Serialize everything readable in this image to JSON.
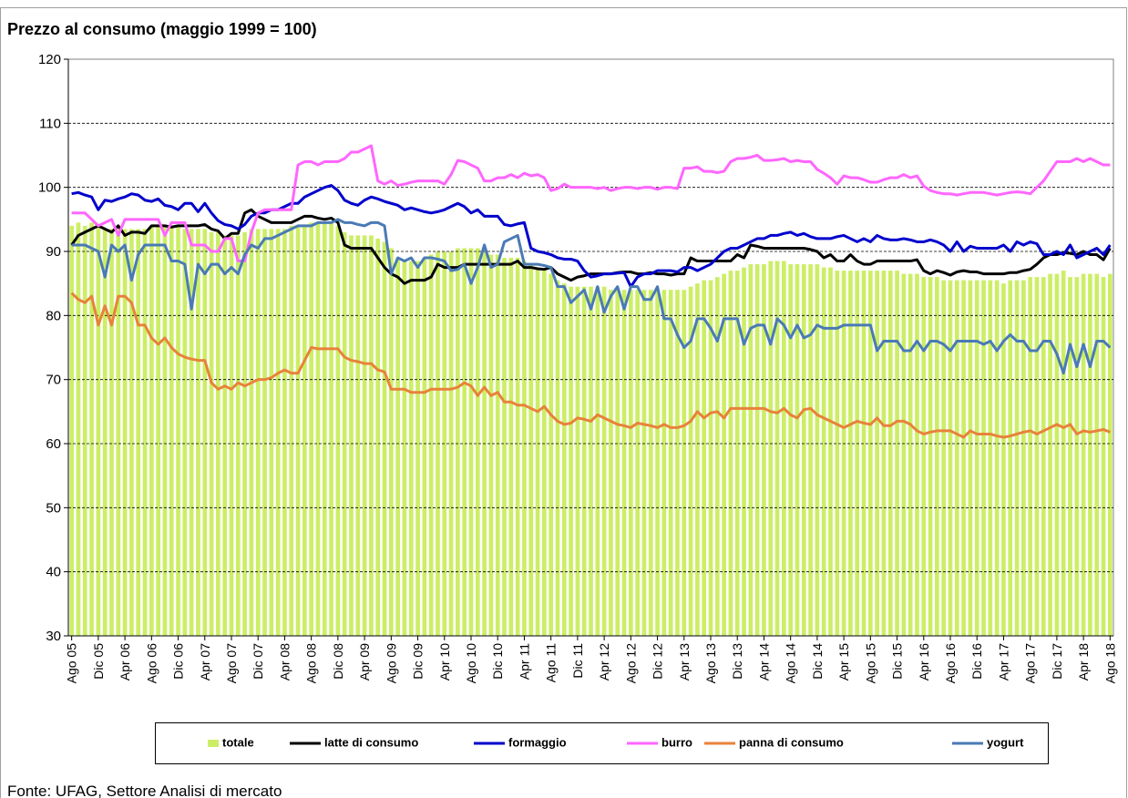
{
  "chart_data": {
    "type": "line",
    "title": "Prezzo al consumo (maggio 1999 = 100)",
    "source": "Fonte: UFAG, Settore Analisi di mercato",
    "ylim": [
      30,
      120
    ],
    "yticks": [
      30,
      40,
      50,
      60,
      70,
      80,
      90,
      100,
      110,
      120
    ],
    "grid": true,
    "legend": "bottom",
    "categories": [
      "Ago 05",
      null,
      null,
      null,
      "Dic 05",
      null,
      null,
      null,
      "Apr 06",
      null,
      null,
      null,
      "Ago 06",
      null,
      null,
      null,
      "Dic 06",
      null,
      null,
      null,
      "Apr 07",
      null,
      null,
      null,
      "Ago 07",
      null,
      null,
      null,
      "Dic 07",
      null,
      null,
      null,
      "Apr 08",
      null,
      null,
      null,
      "Ago 08",
      null,
      null,
      null,
      "Dic 08",
      null,
      null,
      null,
      "Apr 09",
      null,
      null,
      null,
      "Ago 09",
      null,
      null,
      null,
      "Dic 09",
      null,
      null,
      null,
      "Apr 10",
      null,
      null,
      null,
      "Ago 10",
      null,
      null,
      null,
      "Dic 10",
      null,
      null,
      null,
      "Apr 11",
      null,
      null,
      null,
      "Ago 11",
      null,
      null,
      null,
      "Dic 11",
      null,
      null,
      null,
      "Apr 12",
      null,
      null,
      null,
      "Ago 12",
      null,
      null,
      null,
      "Dic 12",
      null,
      null,
      null,
      "Apr 13",
      null,
      null,
      null,
      "Ago 13",
      null,
      null,
      null,
      "Dic 13",
      null,
      null,
      null,
      "Apr 14",
      null,
      null,
      null,
      "Ago 14",
      null,
      null,
      null,
      "Dic 14",
      null,
      null,
      null,
      "Apr 15",
      null,
      null,
      null,
      "Ago 15",
      null,
      null,
      null,
      "Dic 15",
      null,
      null,
      null,
      "Apr 16",
      null,
      null,
      null,
      "Ago 16",
      null,
      null,
      null,
      "Dic 16",
      null,
      null,
      null,
      "Apr 17",
      null,
      null,
      null,
      "Ago 17",
      null,
      null,
      null,
      "Dic 17",
      null,
      null,
      null,
      "Apr 18",
      null,
      null,
      null,
      "Ago 18"
    ],
    "series": [
      {
        "name": "totale",
        "type": "bar",
        "color": "#ccee66",
        "values": [
          94,
          94.5,
          94,
          94.5,
          94,
          93.5,
          93.5,
          94,
          93.5,
          93.5,
          93.5,
          93.5,
          94,
          94,
          94,
          94,
          94,
          93.5,
          93.5,
          93.5,
          93.5,
          93,
          93,
          92.5,
          92.5,
          92.5,
          93,
          93.5,
          93.5,
          93.5,
          93.5,
          93.5,
          93.5,
          94,
          94,
          94,
          94.5,
          94.5,
          94.5,
          94.5,
          94,
          93,
          92.5,
          92.5,
          92.5,
          92.5,
          92,
          91.5,
          90.5,
          89,
          88.5,
          88.5,
          88.5,
          89,
          89.5,
          90,
          90,
          90,
          90.5,
          90.5,
          90.5,
          90.5,
          90,
          89.5,
          89.5,
          89,
          89,
          89,
          88.5,
          88,
          87.5,
          87,
          86.5,
          85.5,
          85,
          84.5,
          84.5,
          84.5,
          84.5,
          84.5,
          84.5,
          84,
          84,
          84,
          84,
          84,
          84,
          84,
          84,
          84,
          84,
          84,
          84,
          84.5,
          85,
          85.5,
          85.5,
          86,
          86.5,
          87,
          87,
          87.5,
          88,
          88,
          88,
          88.5,
          88.5,
          88.5,
          88,
          88,
          88,
          88,
          88,
          87.5,
          87.5,
          87,
          87,
          87,
          87,
          87,
          87,
          87,
          87,
          87,
          87,
          86.5,
          86.5,
          86.5,
          86,
          86,
          86,
          85.5,
          85.5,
          85.5,
          85.5,
          85.5,
          85.5,
          85.5,
          85.5,
          85.5,
          85,
          85.5,
          85.5,
          85.5,
          86,
          86,
          86,
          86.5,
          86.5,
          87,
          86,
          86,
          86.5,
          86.5,
          86.5,
          86,
          86.5
        ]
      },
      {
        "name": "latte di consumo",
        "color": "#000000",
        "values": [
          91,
          92.5,
          93,
          93.5,
          94,
          93.5,
          93,
          94,
          92.5,
          93,
          93,
          92.8,
          94,
          94,
          94,
          93.8,
          94,
          94,
          94,
          94,
          94.2,
          93.5,
          93.2,
          92,
          92.8,
          92.8,
          96,
          96.5,
          95.5,
          95,
          94.5,
          94.5,
          94.5,
          94.5,
          95,
          95.5,
          95.5,
          95.2,
          95,
          95.2,
          94.5,
          91,
          90.5,
          90.5,
          90.5,
          90.5,
          89,
          87.5,
          86.5,
          86,
          85,
          85.5,
          85.5,
          85.5,
          86,
          88,
          87.5,
          87.5,
          87.5,
          88,
          88,
          88,
          88,
          88,
          88,
          88,
          88,
          88.5,
          87.5,
          87.5,
          87.3,
          87.2,
          87.5,
          86.5,
          86,
          85.5,
          86,
          86.2,
          86.5,
          86.5,
          86.5,
          86.5,
          86.7,
          86.8,
          86.8,
          86.5,
          86.5,
          86.7,
          86.5,
          86.5,
          86.3,
          86.5,
          86.5,
          89,
          88.5,
          88.5,
          88.5,
          88.5,
          88.5,
          88.5,
          89.5,
          89,
          91,
          90.8,
          90.5,
          90.5,
          90.5,
          90.5,
          90.5,
          90.5,
          90.5,
          90.3,
          90,
          89,
          89.5,
          88.5,
          88.5,
          89.5,
          88.5,
          88,
          88,
          88.5,
          88.5,
          88.5,
          88.5,
          88.5,
          88.5,
          88.7,
          87,
          86.5,
          87,
          86.7,
          86.3,
          86.8,
          87,
          86.8,
          86.8,
          86.5,
          86.5,
          86.5,
          86.5,
          86.7,
          86.7,
          87,
          87.2,
          88,
          89,
          89.5,
          89.5,
          89.8,
          89.7,
          89.5,
          90,
          89.5,
          89.5,
          88.7,
          90.5
        ]
      },
      {
        "name": "formaggio",
        "color": "#0000cc",
        "values": [
          99,
          99.2,
          98.8,
          98.5,
          96.5,
          98,
          97.8,
          98.2,
          98.5,
          99,
          98.8,
          98,
          97.8,
          98.2,
          97.2,
          97,
          96.5,
          97.5,
          97.5,
          96.2,
          97.5,
          96,
          94.8,
          94.2,
          94,
          93.5,
          94.2,
          95.5,
          96,
          96,
          96.5,
          96.5,
          97,
          97.5,
          97.5,
          98.5,
          99,
          99.5,
          100,
          100.3,
          99.5,
          98,
          97.5,
          97.2,
          98,
          98.5,
          98.2,
          97.8,
          97.5,
          97.2,
          96.5,
          96.8,
          96.5,
          96.2,
          96,
          96.2,
          96.5,
          97,
          97.5,
          97,
          96,
          96.5,
          95.5,
          95.5,
          95.5,
          94.2,
          94,
          94.3,
          94.5,
          90.5,
          90,
          89.8,
          89.5,
          89,
          88.8,
          88.8,
          88.5,
          87,
          86,
          86.2,
          86.5,
          86.5,
          86.6,
          86.7,
          84.5,
          86,
          86.5,
          86.5,
          87,
          87,
          87,
          86.8,
          87.5,
          87.5,
          87,
          87.5,
          88,
          89,
          90,
          90.5,
          90.5,
          91,
          91.5,
          92,
          92,
          92.5,
          92.5,
          92.8,
          93,
          92.5,
          92.8,
          92.3,
          92,
          92,
          92,
          92.3,
          92.5,
          92,
          91.5,
          92,
          91.5,
          92.5,
          92,
          91.8,
          91.8,
          92,
          91.8,
          91.5,
          91.5,
          91.8,
          91.5,
          91,
          90,
          91.5,
          90,
          90.8,
          90.5,
          90.5,
          90.5,
          90.5,
          91,
          90,
          91.5,
          91,
          91.5,
          91.2,
          89.5,
          89.5,
          90,
          89.5,
          91,
          89,
          89.5,
          90,
          90.5,
          89.5,
          91
        ]
      },
      {
        "name": "burro",
        "color": "#ff66ff",
        "values": [
          96,
          96,
          96,
          95,
          94,
          94.5,
          95,
          92.5,
          95,
          95,
          95,
          95,
          95,
          95,
          92.5,
          94.5,
          94.5,
          94.5,
          91,
          91,
          91,
          90,
          90,
          92,
          92,
          88.5,
          88.5,
          93,
          96,
          96.5,
          96.5,
          96.5,
          96.5,
          96.5,
          103.5,
          104,
          104,
          103.5,
          104,
          104,
          104,
          104.5,
          105.5,
          105.5,
          106,
          106.5,
          101,
          100.5,
          101,
          100.3,
          100.5,
          100.8,
          101,
          101,
          101,
          101,
          100.5,
          102,
          104.2,
          104,
          103.5,
          103,
          101,
          101,
          101.5,
          101.5,
          102,
          101.5,
          102.2,
          101.8,
          102,
          101.5,
          99.5,
          99.8,
          100.5,
          100,
          100,
          100,
          100,
          99.8,
          100,
          99.5,
          99.8,
          100,
          100,
          99.8,
          100,
          100,
          99.7,
          100,
          100,
          99.8,
          103,
          103,
          103.2,
          102.5,
          102.5,
          102.3,
          102.5,
          104,
          104.5,
          104.5,
          104.7,
          105,
          104.2,
          104.2,
          104.3,
          104.5,
          104,
          104.2,
          104,
          104,
          102.8,
          102.2,
          101.5,
          100.5,
          101.8,
          101.5,
          101.5,
          101.2,
          100.8,
          100.8,
          101.2,
          101.5,
          101.5,
          102,
          101.5,
          101.8,
          100.2,
          99.5,
          99.2,
          99,
          99,
          98.8,
          99,
          99.2,
          99.2,
          99.2,
          99,
          98.8,
          99,
          99.2,
          99.3,
          99.2,
          99,
          100,
          101,
          102.5,
          104,
          104,
          104,
          104.5,
          104,
          104.5,
          104,
          103.5,
          103.5
        ]
      },
      {
        "name": "panna di consumo",
        "color": "#e8823a",
        "values": [
          83.5,
          82.5,
          82,
          83,
          78.5,
          81.5,
          78.5,
          83,
          83,
          82,
          78.5,
          78.5,
          76.5,
          75.5,
          76.5,
          75,
          74,
          73.5,
          73.2,
          73,
          73,
          69.5,
          68.5,
          69,
          68.5,
          69.5,
          69,
          69.5,
          70,
          70,
          70.3,
          71,
          71.5,
          71,
          71,
          73,
          75,
          74.8,
          74.8,
          74.8,
          74.8,
          73.5,
          73,
          72.8,
          72.5,
          72.5,
          71.5,
          71.2,
          68.5,
          68.5,
          68.5,
          68,
          68,
          68,
          68.5,
          68.5,
          68.5,
          68.5,
          68.8,
          69.5,
          69,
          67.5,
          68.8,
          67.5,
          68,
          66.5,
          66.5,
          66,
          66,
          65.5,
          65,
          65.8,
          64.5,
          63.5,
          63,
          63.2,
          64,
          63.8,
          63.5,
          64.5,
          64,
          63.5,
          63,
          62.8,
          62.5,
          63.2,
          63,
          62.8,
          62.5,
          63,
          62.5,
          62.5,
          62.8,
          63.5,
          65,
          64,
          64.8,
          65,
          64,
          65.5,
          65.5,
          65.5,
          65.5,
          65.5,
          65.5,
          65,
          64.8,
          65.5,
          64.5,
          64,
          65.3,
          65.5,
          64.5,
          64,
          63.5,
          63,
          62.5,
          63,
          63.5,
          63.2,
          63,
          64,
          62.8,
          62.8,
          63.5,
          63.5,
          63,
          62,
          61.5,
          61.8,
          62,
          62,
          62,
          61.5,
          61,
          62,
          61.5,
          61.5,
          61.5,
          61.2,
          61,
          61.2,
          61.5,
          61.8,
          62,
          61.5,
          62,
          62.5,
          63,
          62.5,
          63,
          61.5,
          62,
          61.8,
          62,
          62.2,
          61.8
        ]
      },
      {
        "name": "yogurt",
        "color": "#4a7ab5",
        "values": [
          91,
          91,
          91,
          90.5,
          90,
          86,
          91,
          90,
          91,
          85.5,
          89.5,
          91,
          91,
          91,
          91,
          88.5,
          88.5,
          88,
          81,
          88,
          86.5,
          88,
          88,
          86.5,
          87.5,
          86.5,
          89.5,
          91,
          90.5,
          92,
          92,
          92.5,
          93,
          93.5,
          94,
          94,
          94,
          94.5,
          94.5,
          94.5,
          95,
          94.5,
          94.5,
          94.2,
          94,
          94.5,
          94.5,
          94,
          86.5,
          89,
          88.5,
          89,
          87.5,
          89,
          89,
          88.8,
          88.5,
          87,
          87.2,
          88,
          85,
          87.5,
          91,
          87.5,
          88,
          91.5,
          92,
          92.5,
          88,
          88,
          88,
          87.8,
          87.5,
          84.5,
          84.5,
          82,
          83,
          84,
          81,
          84.5,
          80.5,
          83,
          84.5,
          81,
          84.5,
          84.5,
          82.5,
          82.5,
          84.5,
          79.5,
          79.5,
          77,
          75,
          76,
          79.5,
          79.5,
          78,
          76,
          79.5,
          79.5,
          79.5,
          75.5,
          78,
          78.5,
          78.5,
          75.5,
          79.5,
          78.5,
          76.5,
          78.5,
          76.5,
          77,
          78.5,
          78,
          78,
          78,
          78.5,
          78.5,
          78.5,
          78.5,
          78.5,
          74.5,
          76,
          76,
          76,
          74.5,
          74.5,
          76,
          74.5,
          76,
          76,
          75.5,
          74.5,
          76,
          76,
          76,
          76,
          75.5,
          76,
          74.5,
          76,
          77,
          76,
          76,
          74.5,
          74.5,
          76,
          76,
          74,
          71,
          75.5,
          72,
          75.5,
          72,
          76,
          76,
          75
        ]
      }
    ]
  }
}
